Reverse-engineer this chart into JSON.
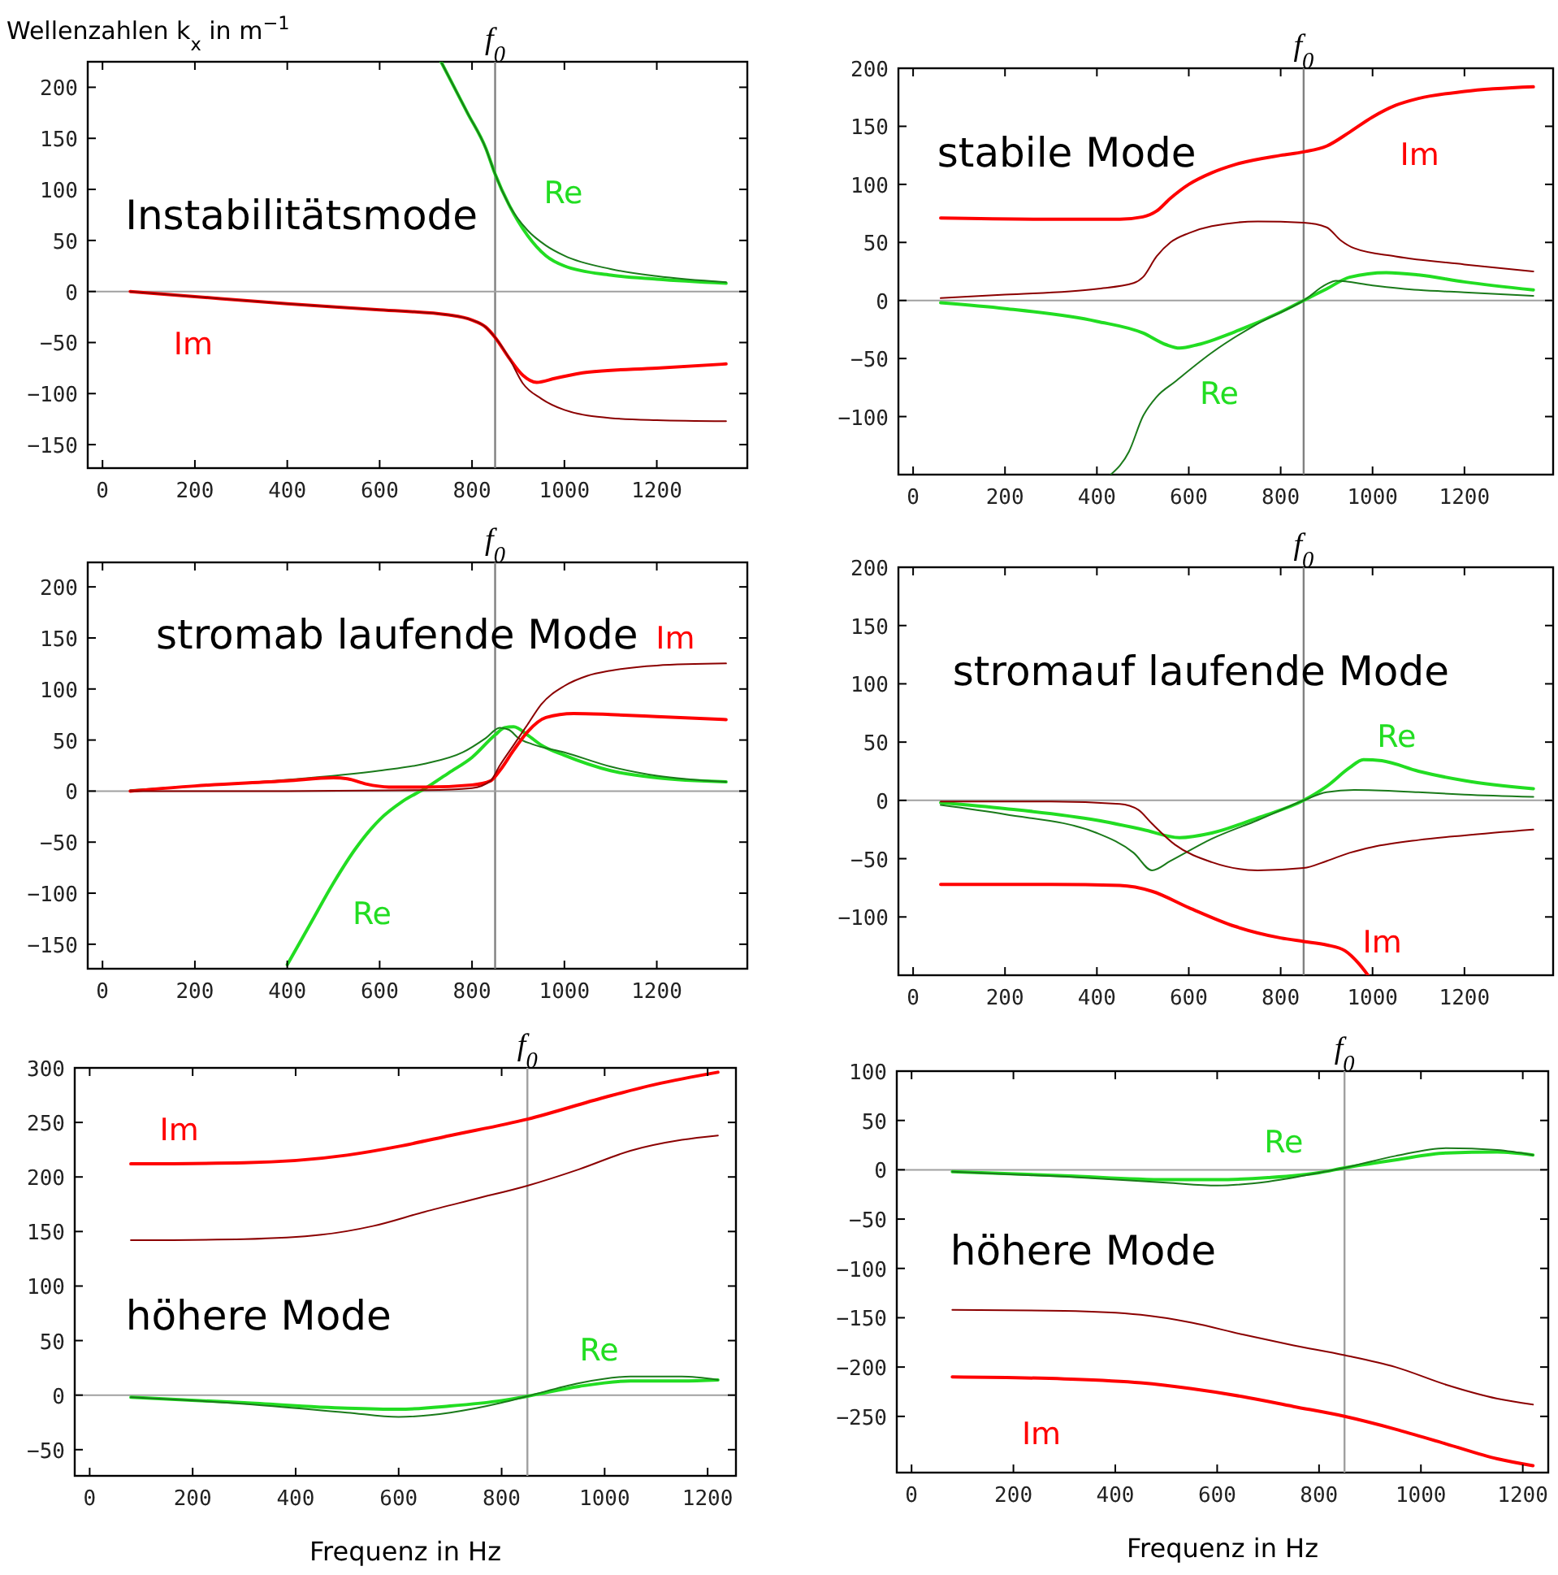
{
  "chart_data": [
    {
      "type": "line",
      "title": "Instabilitätsmode",
      "ylabel": "Wellenzahlen k$_{x}$ in m$^{−1}$",
      "xlim": [
        -32,
        1396
      ],
      "ylim": [
        -173,
        225
      ],
      "xticks": [
        0,
        200,
        400,
        600,
        800,
        1000,
        1200
      ],
      "yticks": [
        -150,
        -100,
        -50,
        0,
        50,
        100,
        150,
        200
      ],
      "grid": false,
      "ref_lines": [
        {
          "axis": "x",
          "value": 850,
          "label": "f$_{0}$",
          "color": "#808080"
        },
        {
          "axis": "y",
          "value": 0,
          "color": "#a0a0a0"
        }
      ],
      "annotations": [
        "Re",
        "Im"
      ],
      "series": [
        {
          "color": "#22dd22",
          "x": [
            733,
            790,
            830,
            850,
            880,
            920,
            960,
            1000,
            1100,
            1200,
            1350
          ],
          "values": [
            225,
            175,
            140,
            115,
            85,
            55,
            35,
            25,
            16,
            12,
            8
          ]
        },
        {
          "color": "#1a7a1a",
          "x": [
            733,
            790,
            830,
            850,
            880,
            920,
            960,
            1000,
            1100,
            1200,
            1350
          ],
          "values": [
            225,
            175,
            140,
            115,
            85,
            60,
            45,
            35,
            22,
            15,
            9
          ]
        },
        {
          "color": "#ff0000",
          "x": [
            60,
            200,
            400,
            600,
            750,
            800,
            830,
            850,
            880,
            910,
            940,
            980,
            1050,
            1200,
            1350
          ],
          "values": [
            0,
            -5,
            -12,
            -18,
            -23,
            -28,
            -35,
            -45,
            -65,
            -82,
            -89,
            -85,
            -79,
            -75,
            -71
          ]
        },
        {
          "color": "#8b0000",
          "x": [
            60,
            200,
            400,
            600,
            750,
            800,
            830,
            850,
            880,
            910,
            950,
            1000,
            1100,
            1200,
            1350
          ],
          "values": [
            0,
            -5,
            -12,
            -18,
            -23,
            -28,
            -35,
            -45,
            -65,
            -90,
            -105,
            -116,
            -124,
            -126,
            -127
          ]
        }
      ]
    },
    {
      "type": "line",
      "title": "stabile Mode",
      "xlim": [
        -32,
        1393
      ],
      "ylim": [
        -150,
        200
      ],
      "xticks": [
        0,
        200,
        400,
        600,
        800,
        1000,
        1200
      ],
      "yticks": [
        -100,
        -50,
        0,
        50,
        100,
        150,
        200
      ],
      "grid": false,
      "ref_lines": [
        {
          "axis": "x",
          "value": 850,
          "label": "f$_{0}$",
          "color": "#808080"
        },
        {
          "axis": "y",
          "value": 0,
          "color": "#a0a0a0"
        }
      ],
      "annotations": [
        "Re",
        "Im"
      ],
      "series": [
        {
          "color": "#22dd22",
          "x": [
            60,
            200,
            400,
            500,
            550,
            580,
            620,
            700,
            800,
            850,
            900,
            950,
            1030,
            1100,
            1200,
            1350
          ],
          "values": [
            -2,
            -7,
            -18,
            -28,
            -38,
            -41,
            -38,
            -27,
            -10,
            0,
            10,
            20,
            24,
            22,
            16,
            9
          ]
        },
        {
          "color": "#1a7a1a",
          "x": [
            430,
            470,
            500,
            530,
            570,
            650,
            750,
            850,
            900,
            920,
            1000,
            1100,
            1200,
            1350
          ],
          "values": [
            -150,
            -130,
            -100,
            -83,
            -70,
            -45,
            -20,
            0,
            14,
            17,
            13,
            9,
            7,
            4
          ]
        },
        {
          "color": "#ff0000",
          "x": [
            60,
            300,
            450,
            500,
            530,
            560,
            600,
            650,
            700,
            800,
            850,
            900,
            950,
            1000,
            1050,
            1100,
            1200,
            1350
          ],
          "values": [
            71,
            70,
            70,
            72,
            77,
            88,
            100,
            110,
            117,
            125,
            128,
            133,
            145,
            158,
            168,
            174,
            180,
            184
          ]
        },
        {
          "color": "#8b0000",
          "x": [
            60,
            200,
            400,
            480,
            500,
            530,
            560,
            600,
            650,
            750,
            850,
            900,
            930,
            960,
            1050,
            1200,
            1350
          ],
          "values": [
            2,
            5,
            10,
            15,
            20,
            38,
            50,
            58,
            64,
            68,
            67,
            63,
            52,
            45,
            38,
            31,
            25
          ]
        }
      ]
    },
    {
      "type": "line",
      "title": "stromab laufende Mode",
      "xlim": [
        -32,
        1396
      ],
      "ylim": [
        -174,
        224
      ],
      "xticks": [
        0,
        200,
        400,
        600,
        800,
        1000,
        1200
      ],
      "yticks": [
        -150,
        -100,
        -50,
        0,
        50,
        100,
        150,
        200
      ],
      "grid": false,
      "ref_lines": [
        {
          "axis": "x",
          "value": 850,
          "label": "f$_{0}$",
          "color": "#808080"
        },
        {
          "axis": "y",
          "value": 0,
          "color": "#a0a0a0"
        }
      ],
      "annotations": [
        "Re",
        "Im"
      ],
      "series": [
        {
          "color": "#22dd22",
          "x": [
            400,
            450,
            500,
            550,
            600,
            650,
            700,
            750,
            800,
            850,
            870,
            890,
            920,
            950,
            1000,
            1100,
            1200,
            1350
          ],
          "values": [
            -170,
            -130,
            -90,
            -55,
            -28,
            -10,
            3,
            18,
            33,
            55,
            62,
            63,
            55,
            45,
            35,
            20,
            13,
            9
          ]
        },
        {
          "color": "#1a7a1a",
          "x": [
            60,
            200,
            400,
            600,
            700,
            780,
            830,
            860,
            880,
            900,
            930,
            1000,
            1100,
            1200,
            1350
          ],
          "values": [
            1,
            5,
            11,
            20,
            27,
            38,
            52,
            62,
            60,
            52,
            46,
            38,
            24,
            15,
            9
          ]
        },
        {
          "color": "#ff0000",
          "x": [
            60,
            200,
            400,
            500,
            530,
            570,
            620,
            700,
            800,
            840,
            860,
            890,
            920,
            960,
            1020,
            1100,
            1200,
            1350
          ],
          "values": [
            0,
            5,
            10,
            13,
            12,
            7,
            4,
            4,
            6,
            10,
            20,
            40,
            58,
            72,
            76,
            75,
            73,
            70
          ]
        },
        {
          "color": "#8b0000",
          "x": [
            60,
            400,
            700,
            800,
            840,
            860,
            890,
            920,
            950,
            1000,
            1050,
            1100,
            1200,
            1350
          ],
          "values": [
            0,
            0,
            1,
            3,
            10,
            25,
            45,
            65,
            85,
            103,
            113,
            118,
            123,
            125
          ]
        }
      ]
    },
    {
      "type": "line",
      "title": "stromauf laufende Mode",
      "xlim": [
        -32,
        1393
      ],
      "ylim": [
        -150,
        200
      ],
      "xticks": [
        0,
        200,
        400,
        600,
        800,
        1000,
        1200
      ],
      "yticks": [
        -100,
        -50,
        0,
        50,
        100,
        150,
        200
      ],
      "grid": false,
      "ref_lines": [
        {
          "axis": "x",
          "value": 850,
          "label": "f$_{0}$",
          "color": "#808080"
        },
        {
          "axis": "y",
          "value": 0,
          "color": "#a0a0a0"
        }
      ],
      "annotations": [
        "Re",
        "Im"
      ],
      "series": [
        {
          "color": "#22dd22",
          "x": [
            60,
            200,
            400,
            500,
            580,
            650,
            750,
            850,
            900,
            950,
            980,
            1020,
            1100,
            1200,
            1350
          ],
          "values": [
            -2,
            -7,
            -17,
            -25,
            -32,
            -28,
            -15,
            0,
            12,
            28,
            35,
            34,
            25,
            17,
            10
          ]
        },
        {
          "color": "#1a7a1a",
          "x": [
            60,
            200,
            400,
            480,
            520,
            560,
            650,
            750,
            850,
            900,
            960,
            1100,
            1200,
            1350
          ],
          "values": [
            -4,
            -12,
            -28,
            -45,
            -60,
            -52,
            -33,
            -17,
            0,
            7,
            9,
            7,
            5,
            3
          ]
        },
        {
          "color": "#ff0000",
          "x": [
            60,
            300,
            450,
            520,
            600,
            700,
            800,
            850,
            900,
            940,
            970,
            990
          ],
          "values": [
            -72,
            -72,
            -73,
            -78,
            -92,
            -108,
            -118,
            -121,
            -124,
            -129,
            -140,
            -150
          ]
        },
        {
          "color": "#8b0000",
          "x": [
            60,
            300,
            450,
            490,
            520,
            570,
            650,
            750,
            850,
            900,
            950,
            1000,
            1100,
            1200,
            1350
          ],
          "values": [
            -1,
            -1,
            -3,
            -8,
            -20,
            -38,
            -53,
            -60,
            -58,
            -52,
            -45,
            -40,
            -34,
            -30,
            -25
          ]
        }
      ]
    },
    {
      "type": "line",
      "title": "höhere Mode",
      "xlabel": "Frequenz in Hz",
      "xlim": [
        -29,
        1255
      ],
      "ylim": [
        -74,
        300
      ],
      "xticks": [
        0,
        200,
        400,
        600,
        800,
        1000,
        1200
      ],
      "yticks": [
        -50,
        0,
        50,
        100,
        150,
        200,
        250,
        300
      ],
      "grid": false,
      "ref_lines": [
        {
          "axis": "x",
          "value": 850,
          "label": "f$_{0}$",
          "color": "#a0a0a0"
        },
        {
          "axis": "y",
          "value": 0,
          "color": "#a0a0a0"
        }
      ],
      "annotations": [
        "Re",
        "Im"
      ],
      "series": [
        {
          "color": "#22dd22",
          "x": [
            80,
            300,
            500,
            600,
            700,
            800,
            850,
            950,
            1050,
            1150,
            1220
          ],
          "values": [
            -2,
            -7,
            -12,
            -13,
            -10,
            -5,
            -1,
            8,
            13,
            13,
            14
          ]
        },
        {
          "color": "#1a7a1a",
          "x": [
            80,
            300,
            500,
            600,
            700,
            800,
            850,
            950,
            1050,
            1150,
            1220
          ],
          "values": [
            -2,
            -8,
            -16,
            -20,
            -16,
            -7,
            -1,
            11,
            17,
            17,
            14
          ]
        },
        {
          "color": "#ff0000",
          "x": [
            80,
            300,
            500,
            600,
            700,
            850,
            1000,
            1100,
            1220
          ],
          "values": [
            212,
            213,
            220,
            228,
            238,
            253,
            273,
            285,
            296
          ]
        },
        {
          "color": "#8b0000",
          "x": [
            80,
            300,
            450,
            550,
            650,
            750,
            850,
            950,
            1050,
            1150,
            1220
          ],
          "values": [
            142,
            143,
            147,
            155,
            168,
            180,
            192,
            207,
            224,
            234,
            238
          ]
        }
      ]
    },
    {
      "type": "line",
      "title": "höhere Mode",
      "xlabel": "Frequenz in Hz",
      "xlim": [
        -29,
        1250
      ],
      "ylim": [
        -307,
        100
      ],
      "xticks": [
        0,
        200,
        400,
        600,
        800,
        1000,
        1200
      ],
      "yticks": [
        -250,
        -200,
        -150,
        -100,
        -50,
        0,
        50,
        100
      ],
      "grid": false,
      "ref_lines": [
        {
          "axis": "x",
          "value": 850,
          "label": "f$_{0}$",
          "color": "#a0a0a0"
        },
        {
          "axis": "y",
          "value": 0,
          "color": "#a0a0a0"
        }
      ],
      "annotations": [
        "Re",
        "Im"
      ],
      "series": [
        {
          "color": "#22dd22",
          "x": [
            80,
            300,
            500,
            600,
            700,
            800,
            850,
            950,
            1050,
            1150,
            1220
          ],
          "values": [
            -2,
            -6,
            -10,
            -10,
            -8,
            -3,
            2,
            10,
            17,
            18,
            15
          ]
        },
        {
          "color": "#1a7a1a",
          "x": [
            80,
            300,
            500,
            600,
            700,
            800,
            850,
            950,
            1050,
            1150,
            1220
          ],
          "values": [
            -2,
            -7,
            -13,
            -16,
            -12,
            -3,
            2,
            14,
            22,
            20,
            15
          ]
        },
        {
          "color": "#ff0000",
          "x": [
            80,
            300,
            450,
            550,
            650,
            750,
            850,
            950,
            1050,
            1150,
            1220
          ],
          "values": [
            -210,
            -212,
            -216,
            -222,
            -230,
            -240,
            -250,
            -263,
            -278,
            -293,
            -300
          ]
        },
        {
          "color": "#8b0000",
          "x": [
            80,
            300,
            450,
            550,
            650,
            750,
            850,
            950,
            1050,
            1150,
            1220
          ],
          "values": [
            -142,
            -143,
            -147,
            -155,
            -167,
            -178,
            -188,
            -200,
            -218,
            -232,
            -238
          ]
        }
      ]
    }
  ]
}
